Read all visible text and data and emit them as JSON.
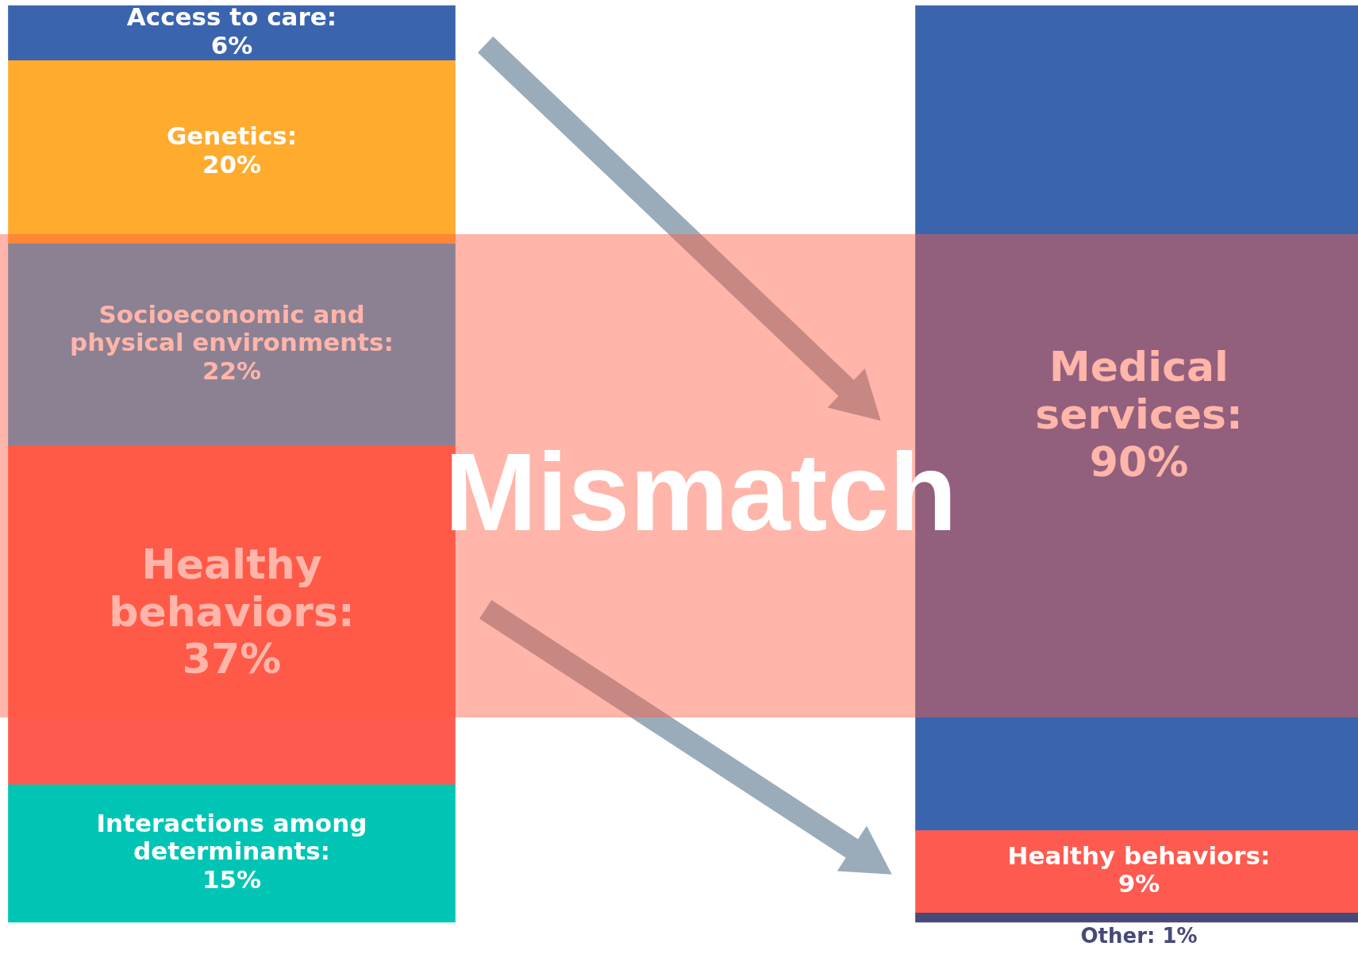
{
  "chart_data": {
    "type": "bar",
    "stacked": true,
    "categories": [
      null,
      null
    ],
    "ylim": [
      0,
      100
    ],
    "grid": false,
    "legend": false,
    "annotations": [
      "Mismatch"
    ],
    "series": [
      {
        "color": "#00c5b5",
        "values": [
          15,
          null
        ],
        "value_labels": [
          "Interactions among determinants: 15%",
          null
        ]
      },
      {
        "color": "#474a78",
        "values": [
          null,
          1
        ],
        "value_labels": [
          null,
          "Other: 1%"
        ]
      },
      {
        "color": "#ff5a4f",
        "values": [
          37,
          9
        ],
        "value_labels": [
          "Healthy behaviors: 37%",
          "Healthy behaviors: 9%"
        ]
      },
      {
        "color": "#2f9fd8",
        "values": [
          22,
          null
        ],
        "value_labels": [
          "Socioeconomic and physical environments: 22%",
          null
        ]
      },
      {
        "color": "#ffab2e",
        "values": [
          20,
          null
        ],
        "value_labels": [
          "Genetics: 20%",
          null
        ]
      },
      {
        "color": "#3a64ae",
        "values": [
          6,
          null
        ],
        "value_labels": [
          "Access to care: 6%",
          null
        ]
      },
      {
        "color": "#3a64ae",
        "values": [
          null,
          90
        ],
        "value_labels": [
          null,
          "Medical services: 90%"
        ]
      }
    ]
  }
}
